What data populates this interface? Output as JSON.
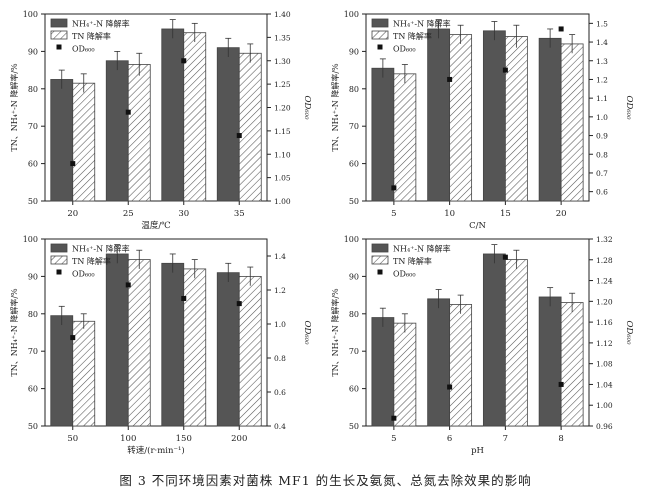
{
  "caption": "图 3   不同环境因素对菌株 MF1 的生长及氨氮、总氮去除效果的影响",
  "chart_data": [
    {
      "type": "bar",
      "x": [
        "20",
        "25",
        "30",
        "35"
      ],
      "xlabel": "温度/℃",
      "ylabel": "TN、NH₄⁺-N 降解率/%",
      "ylabel2": "OD₆₀₀",
      "ylim": [
        50,
        100
      ],
      "ylim2": [
        1.0,
        1.4
      ],
      "yticks": [
        50,
        60,
        70,
        80,
        90,
        100
      ],
      "yticks2": [
        "1.00",
        "1.05",
        "1.10",
        "1.15",
        "1.20",
        "1.25",
        "1.30",
        "1.35",
        "1.40"
      ],
      "legend": [
        "NH₄⁺-N 降解率",
        "TN 降解率",
        "OD₆₀₀"
      ],
      "series": [
        {
          "name": "NH₄⁺-N 降解率",
          "values": [
            82.5,
            87.5,
            96,
            91
          ],
          "errors": [
            2.5,
            2.5,
            2.5,
            2.5
          ]
        },
        {
          "name": "TN 降解率",
          "values": [
            81.5,
            86.5,
            95,
            89.5
          ],
          "errors": [
            2.5,
            3,
            2.5,
            2.5
          ]
        },
        {
          "name": "OD₆₀₀",
          "values": [
            1.08,
            1.19,
            1.3,
            1.14
          ],
          "axis": "right"
        }
      ]
    },
    {
      "type": "bar",
      "x": [
        "5",
        "10",
        "15",
        "20"
      ],
      "xlabel": "C/N",
      "ylabel": "TN、NH₄⁺-N 降解率/%",
      "ylabel2": "OD₆₀₀",
      "ylim": [
        50,
        100
      ],
      "ylim2": [
        0.55,
        1.55
      ],
      "yticks": [
        50,
        60,
        70,
        80,
        90,
        100
      ],
      "yticks2": [
        "0.6",
        "0.7",
        "0.8",
        "0.9",
        "1.0",
        "1.1",
        "1.2",
        "1.3",
        "1.4",
        "1.5"
      ],
      "legend": [
        "NH₄⁺-N 降解率",
        "TN 降解率",
        "OD₆₀₀"
      ],
      "series": [
        {
          "name": "NH₄⁺-N 降解率",
          "values": [
            85.5,
            96,
            95.5,
            93.5
          ],
          "errors": [
            2.5,
            2.5,
            2.5,
            2.5
          ]
        },
        {
          "name": "TN 降解率",
          "values": [
            84,
            94.5,
            94,
            92
          ],
          "errors": [
            2.5,
            2.5,
            3,
            2.5
          ]
        },
        {
          "name": "OD₆₀₀",
          "values": [
            0.62,
            1.2,
            1.25,
            1.47
          ],
          "axis": "right"
        }
      ]
    },
    {
      "type": "bar",
      "x": [
        "50",
        "100",
        "150",
        "200"
      ],
      "xlabel": "转速/(r·min⁻¹)",
      "ylabel": "TN、NH₄⁺-N 降解率/%",
      "ylabel2": "OD₆₀₀",
      "ylim": [
        50,
        100
      ],
      "ylim2": [
        0.4,
        1.5
      ],
      "yticks": [
        50,
        60,
        70,
        80,
        90,
        100
      ],
      "yticks2": [
        "0.4",
        "0.6",
        "0.8",
        "1.0",
        "1.2",
        "1.4"
      ],
      "legend": [
        "NH₄⁺-N 降解率",
        "TN 降解率",
        "OD₆₀₀"
      ],
      "series": [
        {
          "name": "NH₄⁺-N 降解率",
          "values": [
            79.5,
            96,
            93.5,
            91
          ],
          "errors": [
            2.5,
            2.5,
            2.5,
            2.5
          ]
        },
        {
          "name": "TN 降解率",
          "values": [
            78,
            94.5,
            92,
            90
          ],
          "errors": [
            2,
            2.5,
            2.5,
            2.5
          ]
        },
        {
          "name": "OD₆₀₀",
          "values": [
            0.92,
            1.23,
            1.15,
            1.12
          ],
          "axis": "right"
        }
      ]
    },
    {
      "type": "bar",
      "x": [
        "5",
        "6",
        "7",
        "8"
      ],
      "xlabel": "pH",
      "ylabel": "TN、NH₄⁺-N 降解率/%",
      "ylabel2": "OD₆₀₀",
      "ylim": [
        50,
        100
      ],
      "ylim2": [
        0.96,
        1.32
      ],
      "yticks": [
        50,
        60,
        70,
        80,
        90,
        100
      ],
      "yticks2": [
        "0.96",
        "1.00",
        "1.04",
        "1.08",
        "1.12",
        "1.16",
        "1.20",
        "1.24",
        "1.28",
        "1.32"
      ],
      "legend": [
        "NH₄⁺-N 降解率",
        "TN 降解率",
        "OD₆₀₀"
      ],
      "series": [
        {
          "name": "NH₄⁺-N 降解率",
          "values": [
            79,
            84,
            96,
            84.5
          ],
          "errors": [
            2.5,
            2.5,
            2.5,
            2.5
          ]
        },
        {
          "name": "TN 降解率",
          "values": [
            77.5,
            82.5,
            94.5,
            83
          ],
          "errors": [
            2.5,
            2.5,
            2.5,
            2.5
          ]
        },
        {
          "name": "OD₆₀₀",
          "values": [
            0.975,
            1.035,
            1.285,
            1.04
          ],
          "axis": "right"
        }
      ]
    }
  ]
}
